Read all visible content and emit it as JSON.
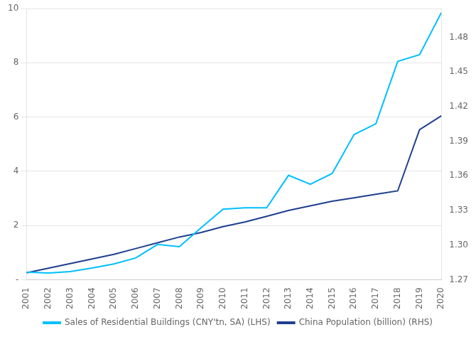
{
  "chart_data": {
    "type": "line",
    "x": [
      2001,
      2002,
      2003,
      2004,
      2005,
      2006,
      2007,
      2008,
      2009,
      2010,
      2011,
      2012,
      2013,
      2014,
      2015,
      2016,
      2017,
      2018,
      2019,
      2020
    ],
    "xlim": [
      2001,
      2020
    ],
    "xticks": [
      2001,
      2002,
      2003,
      2004,
      2005,
      2006,
      2007,
      2008,
      2009,
      2010,
      2011,
      2012,
      2013,
      2014,
      2015,
      2016,
      2017,
      2018,
      2019,
      2020
    ],
    "ylim": [
      0,
      10
    ],
    "yticks": [
      {
        "value": 0,
        "label": "-"
      },
      2,
      4,
      6,
      8,
      10
    ],
    "y2lim": [
      1.27,
      1.505
    ],
    "y2ticks": [
      1.27,
      {
        "value": 1.3,
        "label": "1.30"
      },
      1.33,
      1.36,
      1.39,
      1.42,
      1.45,
      1.48
    ],
    "grid": true,
    "legend": "bottom",
    "series": [
      {
        "name": "Sales of Residential Buildings (CNY'tn, SA) (LHS)",
        "color": "#00BFFF",
        "values": [
          0.28,
          0.25,
          0.3,
          0.43,
          0.58,
          0.8,
          1.3,
          1.22,
          1.92,
          2.6,
          2.65,
          2.65,
          3.85,
          3.52,
          3.92,
          5.35,
          5.75,
          8.05,
          8.3,
          9.85
        ]
      },
      {
        "name": "China Population (billion) (RHS)",
        "color": "#1F3F8F",
        "axis": "y2",
        "values": [
          1.276,
          1.28,
          1.284,
          1.288,
          1.292,
          1.297,
          1.302,
          1.307,
          1.311,
          1.316,
          1.32,
          1.325,
          1.33,
          1.334,
          1.338,
          1.341,
          1.344,
          1.347,
          1.4,
          1.412
        ]
      }
    ]
  }
}
